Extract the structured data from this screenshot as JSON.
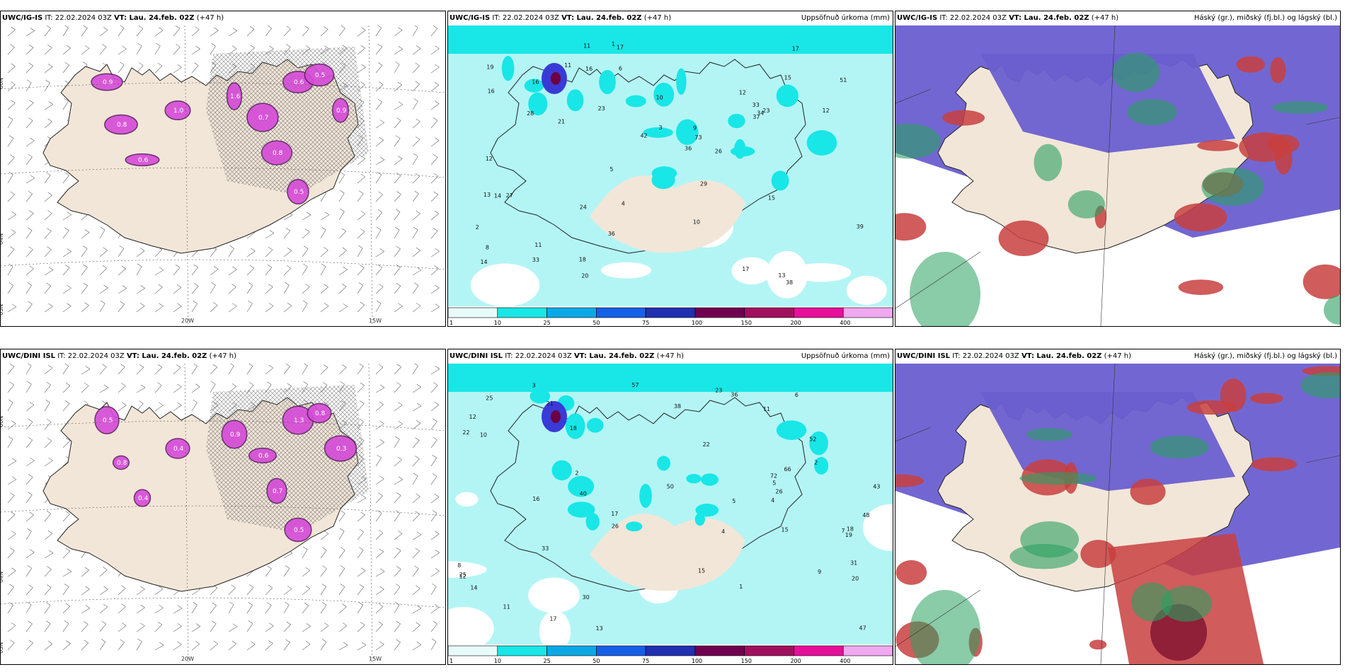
{
  "rows": [
    {
      "panels": [
        {
          "model": "UWC/IG-IS",
          "it_label": "IT: 22.02.2024 03Z",
          "vt_label": "VT: Lau. 24.feb. 02Z",
          "lead": "(+47 h)",
          "right_title": "",
          "lat_labels": [
            "66N",
            "64N",
            "63N"
          ],
          "lon_labels": [
            "20W",
            "15W"
          ],
          "values": [
            "0.9",
            "0.8",
            "1.0",
            "1.6",
            "0.7",
            "0.6",
            "0.5",
            "0.9",
            "0.8",
            "0.5",
            "0.6"
          ]
        },
        {
          "model": "UWC/IG-IS",
          "it_label": "IT: 22.02.2024 03Z",
          "vt_label": "VT: Lau. 24.feb. 02Z",
          "lead": "(+47 h)",
          "right_title": "Uppsöfnuð úrkoma (mm)",
          "station_values": [
            "19",
            "13",
            "11",
            "16",
            "12",
            "42",
            "26",
            "15",
            "73",
            "33",
            "34",
            "51",
            "38",
            "27",
            "17",
            "33",
            "20",
            "9",
            "21",
            "29",
            "36",
            "24",
            "18",
            "13",
            "12",
            "15",
            "10",
            "37",
            "36",
            "14",
            "23",
            "17",
            "11",
            "12",
            "28",
            "11",
            "16",
            "14",
            "10",
            "8",
            "6",
            "5",
            "4",
            "3",
            "2",
            "1",
            "17",
            "39",
            "23",
            "16"
          ],
          "legend_labels": [
            "1",
            "10",
            "25",
            "50",
            "75",
            "100",
            "150",
            "200",
            "400"
          ]
        },
        {
          "model": "UWC/IG-IS",
          "it_label": "IT: 22.02.2024 03Z",
          "vt_label": "VT: Lau. 24.feb. 02Z",
          "lead": "(+47 h)",
          "right_title": "Háský (gr.), miðský (fj.bl.) og lágský (bl.)"
        }
      ]
    },
    {
      "panels": [
        {
          "model": "UWC/DINI ISL",
          "it_label": "IT: 22.02.2024 03Z",
          "vt_label": "VT: Lau. 24.feb. 02Z",
          "lead": "(+47 h)",
          "right_title": "",
          "lat_labels": [
            "66N",
            "64N",
            "63N"
          ],
          "lon_labels": [
            "20W",
            "15W"
          ],
          "values": [
            "0.5",
            "0.8",
            "0.4",
            "0.9",
            "0.6",
            "1.3",
            "0.8",
            "0.3",
            "0.7",
            "0.5",
            "0.4"
          ]
        },
        {
          "model": "UWC/DINI ISL",
          "it_label": "IT: 22.02.2024 03Z",
          "vt_label": "VT: Lau. 24.feb. 02Z",
          "lead": "(+47 h)",
          "right_title": "Uppsöfnuð úrkoma (mm)",
          "station_values": [
            "17",
            "18",
            "15",
            "12",
            "47",
            "50",
            "52",
            "57",
            "66",
            "48",
            "36",
            "31",
            "72",
            "43",
            "30",
            "38",
            "26",
            "21",
            "23",
            "40",
            "25",
            "17",
            "20",
            "22",
            "11",
            "12",
            "15",
            "16",
            "9",
            "8",
            "7",
            "6",
            "5",
            "4",
            "3",
            "2",
            "1",
            "13",
            "19",
            "26",
            "22",
            "33",
            "10",
            "18",
            "14",
            "25",
            "11",
            "5",
            "4",
            "2"
          ],
          "legend_labels": [
            "1",
            "10",
            "25",
            "50",
            "75",
            "100",
            "150",
            "200",
            "400"
          ]
        },
        {
          "model": "UWC/DINI ISL",
          "it_label": "IT: 22.02.2024 03Z",
          "vt_label": "VT: Lau. 24.feb. 02Z",
          "lead": "(+47 h)",
          "right_title": "Háský (gr.), miðský (fj.bl.) og lágský (bl.)"
        }
      ]
    }
  ],
  "colors": {
    "land": "#f2e6d8",
    "precip_cyan": "#b3f5f5",
    "precip_light": "#19e6e6",
    "precip_mid": "#0aa9e6",
    "precip_dark": "#3a3ad6",
    "precip_deep": "#6e0040",
    "magenta_snow": "#d64ad8",
    "low_cloud": "#6a5fd0",
    "mid_cloud": "#c84040",
    "high_cloud": "#2aa060",
    "legend": [
      "#e8fbfb",
      "#19e6e6",
      "#0aa9e6",
      "#1660e6",
      "#2030b0",
      "#700050",
      "#a0105e",
      "#e6109a",
      "#f0a8f0"
    ]
  }
}
